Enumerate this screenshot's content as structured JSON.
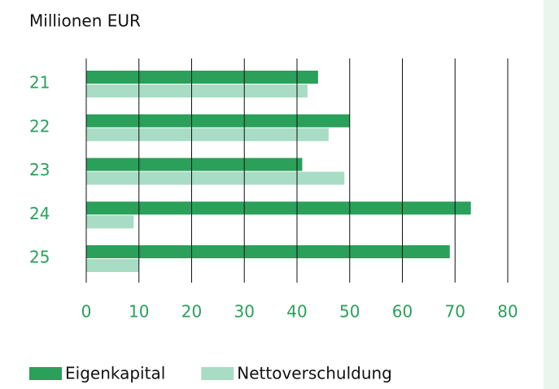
{
  "chart_data": {
    "type": "bar",
    "orientation": "horizontal",
    "title": "Millionen EUR",
    "categories": [
      "21",
      "22",
      "23",
      "24",
      "25"
    ],
    "series": [
      {
        "name": "Eigenkapital",
        "color": "#2aa05a",
        "values": [
          44,
          50,
          41,
          73,
          69
        ]
      },
      {
        "name": "Nettoverschuldung",
        "color": "#a8dcc4",
        "values": [
          42,
          46,
          49,
          9,
          10
        ]
      }
    ],
    "xlim": [
      0,
      80
    ],
    "xticks": [
      0,
      10,
      20,
      30,
      40,
      50,
      60,
      70,
      80
    ],
    "grid": true,
    "legend": "bottom"
  }
}
